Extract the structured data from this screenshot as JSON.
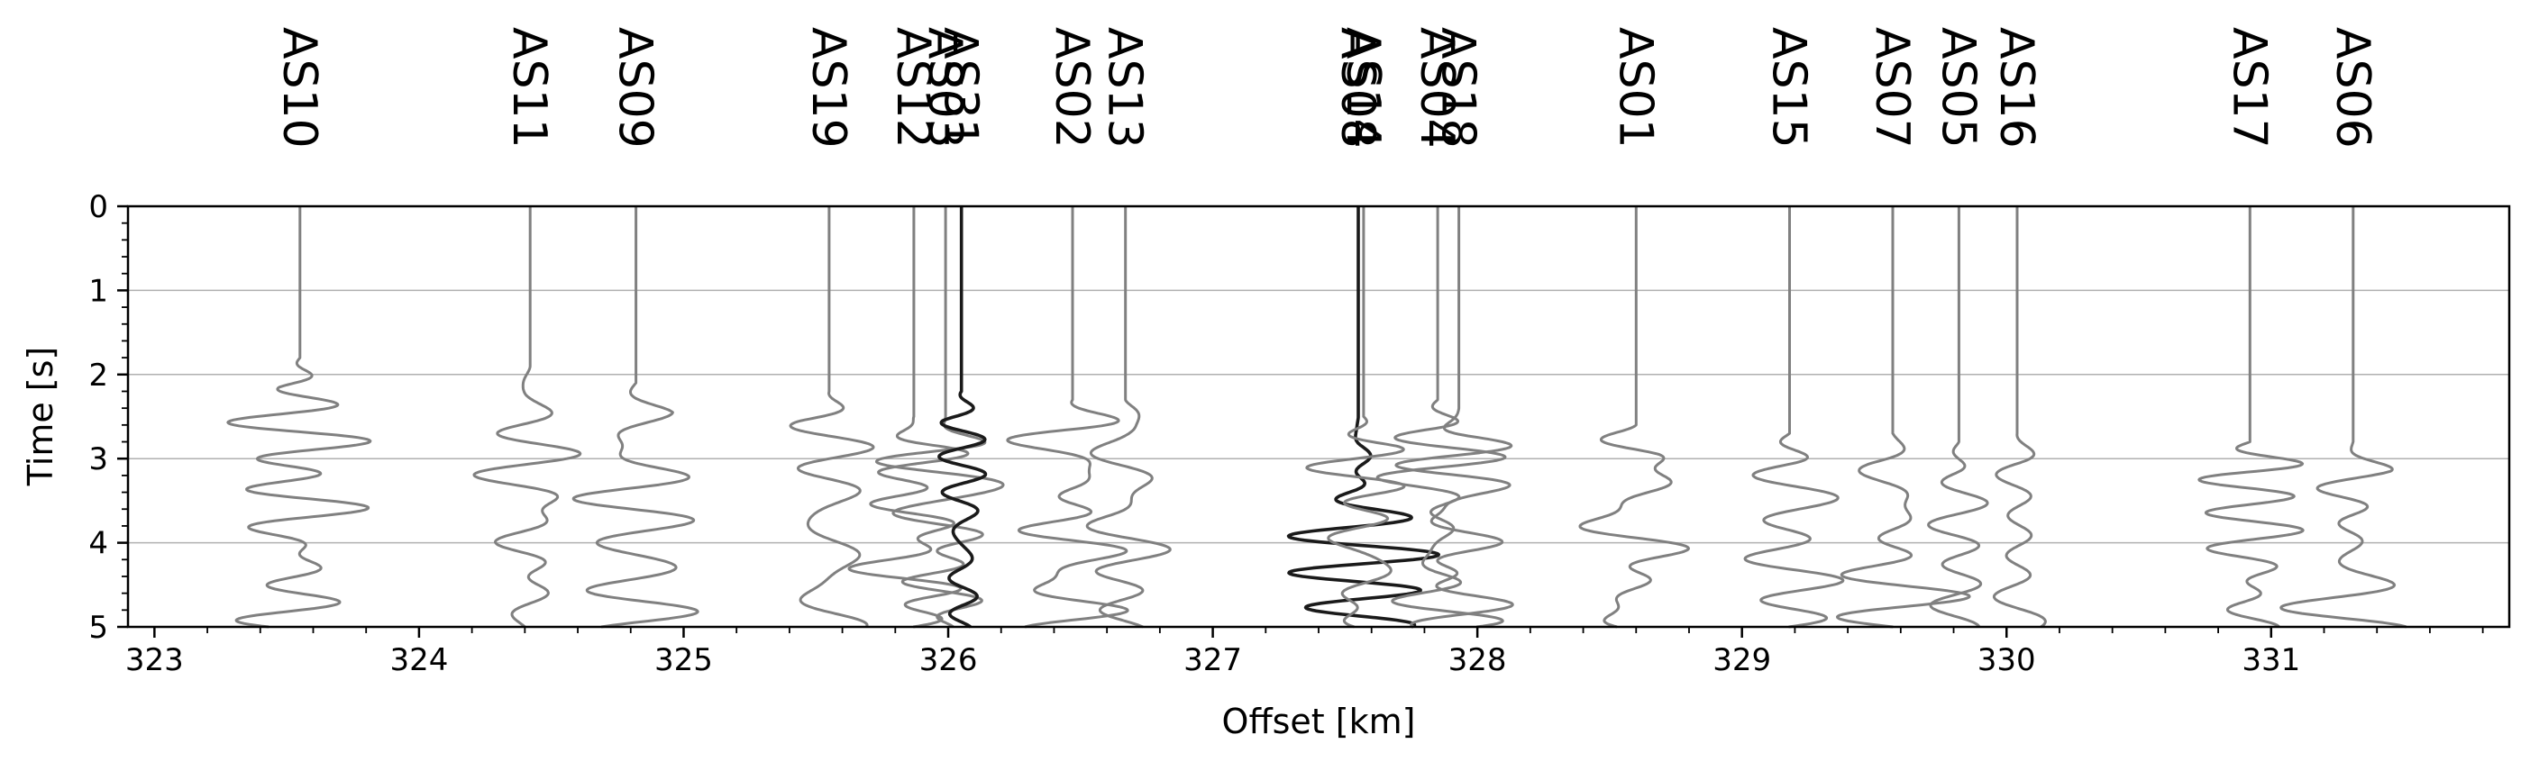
{
  "chart_data": {
    "type": "line",
    "title": "",
    "xlabel": "Offset [km]",
    "ylabel": "Time [s]",
    "xlim": [
      322.9,
      331.9
    ],
    "ylim": [
      5,
      0
    ],
    "y_inverted": true,
    "grid": "horizontal",
    "xticks": [
      323,
      324,
      325,
      326,
      327,
      328,
      329,
      330,
      331
    ],
    "yticks": [
      0,
      1,
      2,
      3,
      4,
      5
    ],
    "trace_color": "#808080",
    "highlight_color": "#1a1a1a",
    "stations": [
      {
        "name": "AS10",
        "offset": 323.55,
        "onset": 1.8,
        "amp": 0.26,
        "seed": 3
      },
      {
        "name": "AS11",
        "offset": 324.42,
        "onset": 1.9,
        "amp": 0.2,
        "seed": 7
      },
      {
        "name": "AS09",
        "offset": 324.82,
        "onset": 2.1,
        "amp": 0.24,
        "seed": 11
      },
      {
        "name": "AS19",
        "offset": 325.55,
        "onset": 2.2,
        "amp": 0.22,
        "seed": 13
      },
      {
        "name": "AS12",
        "offset": 325.87,
        "onset": 2.5,
        "amp": 0.22,
        "seed": 17
      },
      {
        "name": "AS03",
        "offset": 325.99,
        "onset": 2.5,
        "amp": 0.2,
        "seed": 19
      },
      {
        "name": "AS31",
        "offset": 326.05,
        "onset": 2.2,
        "amp": 0.16,
        "seed": 23,
        "highlight": true
      },
      {
        "name": "AS02",
        "offset": 326.47,
        "onset": 2.3,
        "amp": 0.22,
        "seed": 29
      },
      {
        "name": "AS13",
        "offset": 326.67,
        "onset": 2.3,
        "amp": 0.24,
        "seed": 31
      },
      {
        "name": "AS08",
        "offset": 327.55,
        "onset": 2.5,
        "amp": 0.2,
        "seed": 37,
        "highlight": true
      },
      {
        "name": "AS14",
        "offset": 327.57,
        "onset": 2.5,
        "amp": 0.18,
        "seed": 41
      },
      {
        "name": "AS04",
        "offset": 327.85,
        "onset": 2.3,
        "amp": 0.2,
        "seed": 43
      },
      {
        "name": "AS18",
        "offset": 327.93,
        "onset": 2.4,
        "amp": 0.2,
        "seed": 47
      },
      {
        "name": "AS01",
        "offset": 328.6,
        "onset": 2.6,
        "amp": 0.24,
        "seed": 53
      },
      {
        "name": "AS15",
        "offset": 329.18,
        "onset": 2.7,
        "amp": 0.24,
        "seed": 59
      },
      {
        "name": "AS07",
        "offset": 329.57,
        "onset": 2.7,
        "amp": 0.2,
        "seed": 61
      },
      {
        "name": "AS05",
        "offset": 329.82,
        "onset": 2.8,
        "amp": 0.2,
        "seed": 67
      },
      {
        "name": "AS16",
        "offset": 330.04,
        "onset": 2.7,
        "amp": 0.22,
        "seed": 71
      },
      {
        "name": "AS17",
        "offset": 330.92,
        "onset": 2.8,
        "amp": 0.22,
        "seed": 73
      },
      {
        "name": "AS06",
        "offset": 331.31,
        "onset": 2.8,
        "amp": 0.22,
        "seed": 79
      }
    ]
  }
}
